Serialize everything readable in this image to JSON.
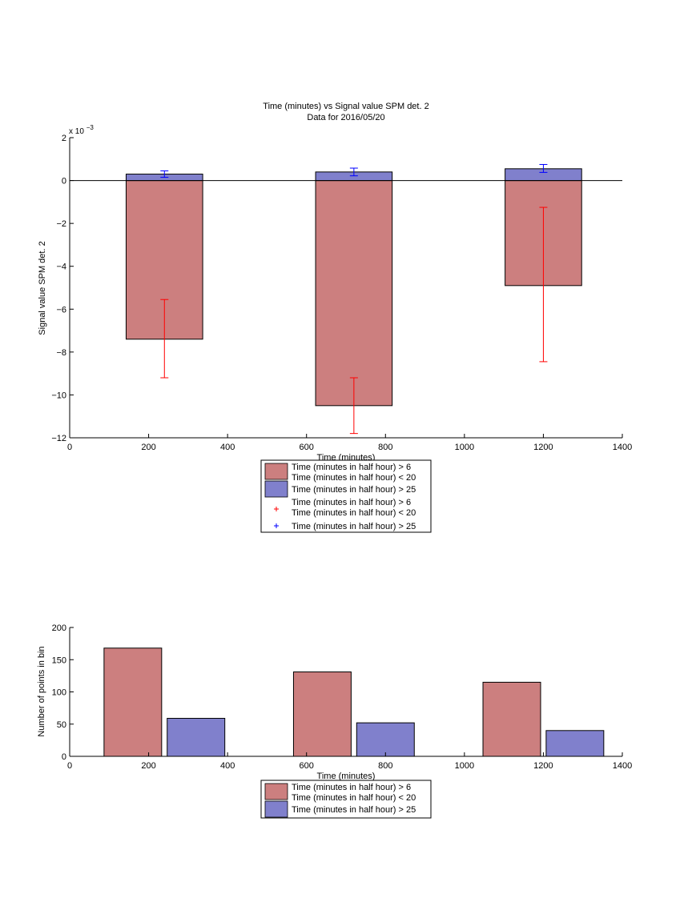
{
  "colors": {
    "red_bar": "#cc7f7f",
    "blue_bar": "#8080cc",
    "red_err": "#ff0000",
    "blue_err": "#0000ff"
  },
  "chart_data": [
    {
      "type": "bar",
      "title": "Time (minutes) vs Signal value SPM det. 2",
      "subtitle": "Data for 2016/05/20",
      "xlabel": "Time (minutes)",
      "ylabel": "Signal value SPM det. 2",
      "y_exponent_label": "x 10",
      "y_exponent_power": "−3",
      "xlim": [
        0,
        1400
      ],
      "ylim": [
        -12,
        2
      ],
      "x_ticks": [
        0,
        200,
        400,
        600,
        800,
        1000,
        1200,
        1400
      ],
      "y_ticks": [
        2,
        0,
        -2,
        -4,
        -6,
        -8,
        -10,
        -12
      ],
      "zero_line": true,
      "grid": false,
      "bin_centers": [
        240,
        720,
        1200
      ],
      "series": [
        {
          "name": "Time (minutes in half hour) > 6\nTime (minutes in half hour) < 20",
          "color": "#cc7f7f",
          "values": [
            -7.4,
            -10.5,
            -4.9
          ],
          "err_low": [
            -9.2,
            -11.8,
            -8.45
          ],
          "err_high": [
            -5.55,
            -9.2,
            -1.25
          ]
        },
        {
          "name": "Time (minutes in half hour) > 25",
          "color": "#8080cc",
          "values": [
            0.3,
            0.4,
            0.55
          ],
          "err_low": [
            0.15,
            0.22,
            0.38
          ],
          "err_high": [
            0.45,
            0.58,
            0.75
          ]
        }
      ],
      "legend": {
        "placement": "below",
        "entries": [
          {
            "kind": "patch",
            "color": "#cc7f7f",
            "lines": [
              "Time (minutes in half hour) > 6",
              "Time (minutes in half hour) < 20"
            ]
          },
          {
            "kind": "patch",
            "color": "#8080cc",
            "lines": [
              "Time (minutes in half hour) > 25"
            ]
          },
          {
            "kind": "marker",
            "color": "#ff0000",
            "lines": [
              "Time (minutes in half hour) > 6",
              "Time (minutes in half hour) < 20"
            ]
          },
          {
            "kind": "marker",
            "color": "#0000ff",
            "lines": [
              "Time (minutes in half hour) > 25"
            ]
          }
        ]
      }
    },
    {
      "type": "bar",
      "xlabel": "Time (minutes)",
      "ylabel": "Number of points in bin",
      "xlim": [
        0,
        1400
      ],
      "ylim": [
        0,
        200
      ],
      "x_ticks": [
        0,
        200,
        400,
        600,
        800,
        1000,
        1200,
        1400
      ],
      "y_ticks": [
        0,
        50,
        100,
        150,
        200
      ],
      "grid": false,
      "series": [
        {
          "name": "Time (minutes in half hour) > 6\nTime (minutes in half hour) < 20",
          "color": "#cc7f7f",
          "centers": [
            160,
            640,
            1120
          ],
          "values": [
            168,
            131,
            115
          ]
        },
        {
          "name": "Time (minutes in half hour) > 25",
          "color": "#8080cc",
          "centers": [
            320,
            800,
            1280
          ],
          "values": [
            59,
            52,
            40
          ]
        }
      ],
      "legend": {
        "placement": "below",
        "entries": [
          {
            "kind": "patch",
            "color": "#cc7f7f",
            "lines": [
              "Time (minutes in half hour) > 6",
              "Time (minutes in half hour) < 20"
            ]
          },
          {
            "kind": "patch",
            "color": "#8080cc",
            "lines": [
              "Time (minutes in half hour) > 25"
            ]
          }
        ]
      }
    }
  ]
}
